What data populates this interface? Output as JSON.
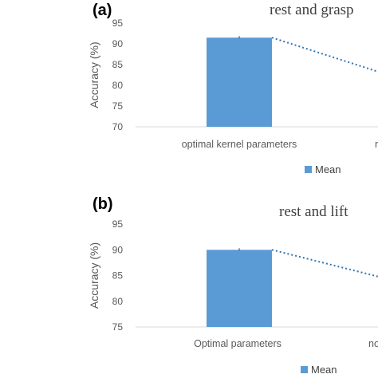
{
  "colors": {
    "bar": "#5B9BD5",
    "trend": "#2E75B6",
    "axis": "#595959",
    "grid": "#D9D9D9"
  },
  "panels": [
    {
      "letter": "(a)",
      "title": "rest and grasp",
      "legend": "Mean"
    },
    {
      "letter": "(b)",
      "title": "rest and lift",
      "legend": "Mean"
    }
  ],
  "chart_data": [
    {
      "type": "bar",
      "title": "rest and grasp",
      "ylabel": "Accuracy (%)",
      "xlabel": "",
      "categories": [
        "optimal kernel parameters",
        "no"
      ],
      "series": [
        {
          "name": "Mean",
          "values": [
            91.5,
            null
          ]
        }
      ],
      "ylim": [
        70,
        95
      ],
      "yticks": [
        70,
        75,
        80,
        85,
        90,
        95
      ],
      "trendline": {
        "from": 91.5,
        "to_at_edge": 83.3
      },
      "legend_position": "bottom"
    },
    {
      "type": "bar",
      "title": "rest and lift",
      "ylabel": "Accuracy (%)",
      "xlabel": "",
      "categories": [
        "Optimal parameters",
        "no"
      ],
      "series": [
        {
          "name": "Mean",
          "values": [
            90,
            null
          ]
        }
      ],
      "ylim": [
        75,
        95
      ],
      "yticks": [
        75,
        80,
        85,
        90,
        95
      ],
      "trendline": {
        "from": 90,
        "to_at_edge": 84.8
      },
      "legend_position": "bottom"
    }
  ]
}
